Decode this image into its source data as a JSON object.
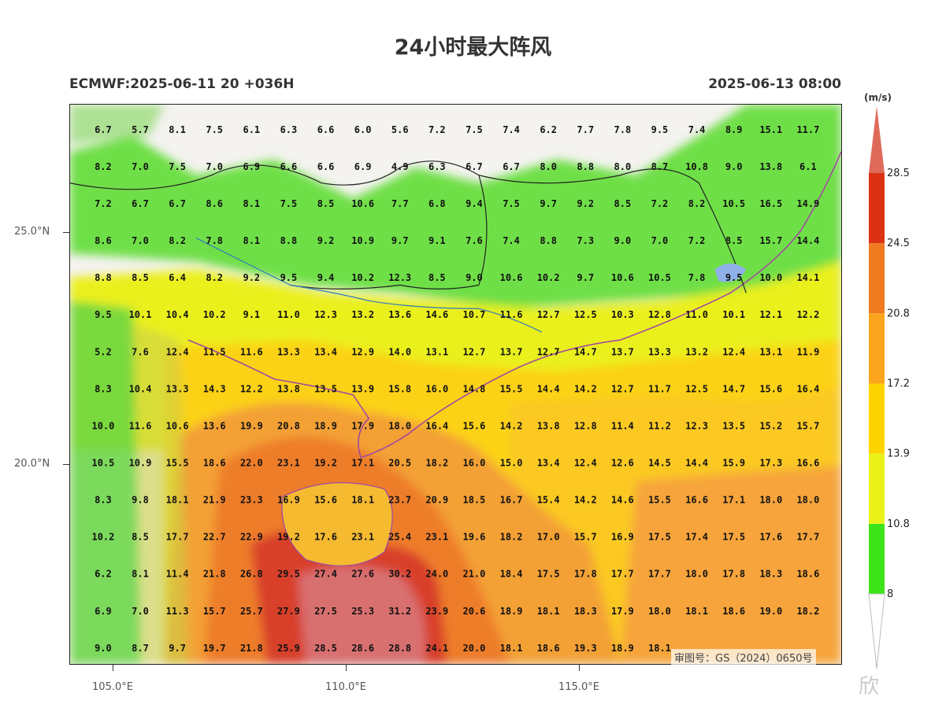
{
  "title": "24小时最大阵风",
  "subtitle_left": "ECMWF:2025-06-11 20 +036H",
  "subtitle_right": "2025-06-13 08:00",
  "unit": "(m/s)",
  "approval_text": "审图号：GS（2024）0650号",
  "watermark": "欣",
  "lat_labels": [
    "25.0°N",
    "20.0°N"
  ],
  "lon_labels": [
    "105.0°E",
    "110.0°E",
    "115.0°E"
  ],
  "colorbar": {
    "levels": [
      "8",
      "10.8",
      "13.9",
      "17.2",
      "20.8",
      "24.5",
      "28.5"
    ],
    "colors": [
      "#3ee41a",
      "#eaf21a",
      "#fdd400",
      "#fba51e",
      "#f07a20",
      "#dc3214",
      "#df6a5a"
    ]
  },
  "grid_values": [
    [
      "6.7",
      "5.7",
      "8.1",
      "7.5",
      "6.1",
      "6.3",
      "6.6",
      "6.0",
      "5.6",
      "7.2",
      "7.5",
      "7.4",
      "6.2",
      "7.7",
      "7.8",
      "9.5",
      "7.4",
      "8.9",
      "15.1",
      "11.7"
    ],
    [
      "8.2",
      "7.0",
      "7.5",
      "7.0",
      "6.9",
      "6.6",
      "6.6",
      "6.9",
      "4.9",
      "6.3",
      "6.7",
      "6.7",
      "8.0",
      "8.8",
      "8.0",
      "8.7",
      "10.8",
      "9.0",
      "13.8",
      "6.1"
    ],
    [
      "7.2",
      "6.7",
      "6.7",
      "8.6",
      "8.1",
      "7.5",
      "8.5",
      "10.6",
      "7.7",
      "6.8",
      "9.4",
      "7.5",
      "9.7",
      "9.2",
      "8.5",
      "7.2",
      "8.2",
      "10.5",
      "16.5",
      "14.9"
    ],
    [
      "8.6",
      "7.0",
      "8.2",
      "7.8",
      "8.1",
      "8.8",
      "9.2",
      "10.9",
      "9.7",
      "9.1",
      "7.6",
      "7.4",
      "8.8",
      "7.3",
      "9.0",
      "7.0",
      "7.2",
      "8.5",
      "15.7",
      "14.4"
    ],
    [
      "8.8",
      "8.5",
      "6.4",
      "8.2",
      "9.2",
      "9.5",
      "9.4",
      "10.2",
      "12.3",
      "8.5",
      "9.0",
      "10.6",
      "10.2",
      "9.7",
      "10.6",
      "10.5",
      "7.8",
      "9.5",
      "10.0",
      "14.1"
    ],
    [
      "9.5",
      "10.1",
      "10.4",
      "10.2",
      "9.1",
      "11.0",
      "12.3",
      "13.2",
      "13.6",
      "14.6",
      "10.7",
      "11.6",
      "12.7",
      "12.5",
      "10.3",
      "12.8",
      "11.0",
      "10.1",
      "12.1",
      "12.2"
    ],
    [
      "5.2",
      "7.6",
      "12.4",
      "11.5",
      "11.6",
      "13.3",
      "13.4",
      "12.9",
      "14.0",
      "13.1",
      "12.7",
      "13.7",
      "12.7",
      "14.7",
      "13.7",
      "13.3",
      "13.2",
      "12.4",
      "13.1",
      "11.9"
    ],
    [
      "8.3",
      "10.4",
      "13.3",
      "14.3",
      "12.2",
      "13.8",
      "13.5",
      "13.9",
      "15.8",
      "16.0",
      "14.8",
      "15.5",
      "14.4",
      "14.2",
      "12.7",
      "11.7",
      "12.5",
      "14.7",
      "15.6",
      "16.4"
    ],
    [
      "10.0",
      "11.6",
      "10.6",
      "13.6",
      "19.9",
      "20.8",
      "18.9",
      "17.9",
      "18.0",
      "16.4",
      "15.6",
      "14.2",
      "13.8",
      "12.8",
      "11.4",
      "11.2",
      "12.3",
      "13.5",
      "15.2",
      "15.7"
    ],
    [
      "10.5",
      "10.9",
      "15.5",
      "18.6",
      "22.0",
      "23.1",
      "19.2",
      "17.1",
      "20.5",
      "18.2",
      "16.0",
      "15.0",
      "13.4",
      "12.4",
      "12.6",
      "14.5",
      "14.4",
      "15.9",
      "17.3",
      "16.6"
    ],
    [
      "8.3",
      "9.8",
      "18.1",
      "21.9",
      "23.3",
      "16.9",
      "15.6",
      "18.1",
      "23.7",
      "20.9",
      "18.5",
      "16.7",
      "15.4",
      "14.2",
      "14.6",
      "15.5",
      "16.6",
      "17.1",
      "18.0",
      "18.0"
    ],
    [
      "10.2",
      "8.5",
      "17.7",
      "22.7",
      "22.9",
      "19.2",
      "17.6",
      "23.1",
      "25.4",
      "23.1",
      "19.6",
      "18.2",
      "17.0",
      "15.7",
      "16.9",
      "17.5",
      "17.4",
      "17.5",
      "17.6",
      "17.7"
    ],
    [
      "6.2",
      "8.1",
      "11.4",
      "21.8",
      "26.8",
      "29.5",
      "27.4",
      "27.6",
      "30.2",
      "24.0",
      "21.0",
      "18.4",
      "17.5",
      "17.8",
      "17.7",
      "17.7",
      "18.0",
      "17.8",
      "18.3",
      "18.6"
    ],
    [
      "6.9",
      "7.0",
      "11.3",
      "15.7",
      "25.7",
      "27.9",
      "27.5",
      "25.3",
      "31.2",
      "23.9",
      "20.6",
      "18.9",
      "18.1",
      "18.3",
      "17.9",
      "18.0",
      "18.1",
      "18.6",
      "19.0",
      "18.2"
    ],
    [
      "9.0",
      "8.7",
      "9.7",
      "19.7",
      "21.8",
      "25.9",
      "28.5",
      "28.6",
      "28.8",
      "24.1",
      "20.0",
      "18.1",
      "18.6",
      "19.3",
      "18.9",
      "18.1",
      "",
      "",
      "",
      ""
    ]
  ]
}
